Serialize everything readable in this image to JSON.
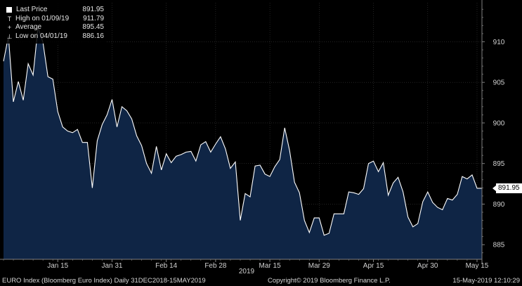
{
  "legend": {
    "last_label": "Last Price",
    "last_value": "891.95",
    "high_label": "High on 01/09/19",
    "high_value": "911.79",
    "avg_label": "Average",
    "avg_value": "895.45",
    "low_label": "Low on 04/01/19",
    "low_value": "886.16"
  },
  "price_tag": "891.95",
  "footer": {
    "left": "EURO Index (Bloomberg Euro Index)  Daily 31DEC2018-15MAY2019",
    "center": "Copyright© 2019 Bloomberg Finance L.P.",
    "right": "15-May-2019 12:10:29"
  },
  "colors": {
    "background": "#000000",
    "fill": "#0f2545",
    "line": "#ffffff",
    "axis": "#808080",
    "grid": "#3a3a3a"
  },
  "chart_data": {
    "type": "area",
    "series": [
      {
        "values": [
          907.6,
          910.7,
          902.6,
          905.1,
          902.8,
          907.3,
          905.9,
          911.79,
          909.9,
          905.7,
          905.4,
          901.4,
          899.5,
          899,
          898.8,
          899.2,
          897.6,
          897.6,
          892,
          897.8,
          899.8,
          901,
          902.9,
          899.5,
          902,
          901.5,
          900.5,
          898.4,
          897.2,
          895,
          893.8,
          897.1,
          894.2,
          896.2,
          895.1,
          895.9,
          896.1,
          896.4,
          896.5,
          895.3,
          897.3,
          897.7,
          896.4,
          897.4,
          898.3,
          896.8,
          894.4,
          895.2,
          888,
          891.3,
          890.9,
          894.7,
          894.8,
          893.7,
          893.4,
          894.6,
          895.5,
          899.4,
          896.6,
          892.7,
          891.4,
          888,
          886.5,
          888.3,
          888.3,
          886.16,
          886.4,
          888.8,
          888.8,
          888.8,
          891.5,
          891.4,
          891.2,
          891.9,
          895,
          895.3,
          894,
          895.1,
          891.1,
          892.6,
          893.3,
          891.5,
          888.4,
          887.2,
          887.6,
          890.3,
          891.5,
          890.2,
          889.6,
          889.3,
          890.7,
          890.5,
          891.2,
          893.4,
          893.1,
          893.6,
          891.95,
          891.95
        ]
      }
    ],
    "x_tick_labels": [
      "Jan 15",
      "Jan 31",
      "Feb 14",
      "Feb 28",
      "Mar 15",
      "Mar 29",
      "Apr 15",
      "Apr 30",
      "May 15"
    ],
    "x_tick_index": [
      11,
      22,
      33,
      43,
      54,
      64,
      75,
      86,
      96
    ],
    "year_label": "2019",
    "y_ticks": [
      885,
      890,
      895,
      900,
      905,
      910
    ],
    "ylim": [
      883.2,
      914.8
    ],
    "grid": true
  }
}
